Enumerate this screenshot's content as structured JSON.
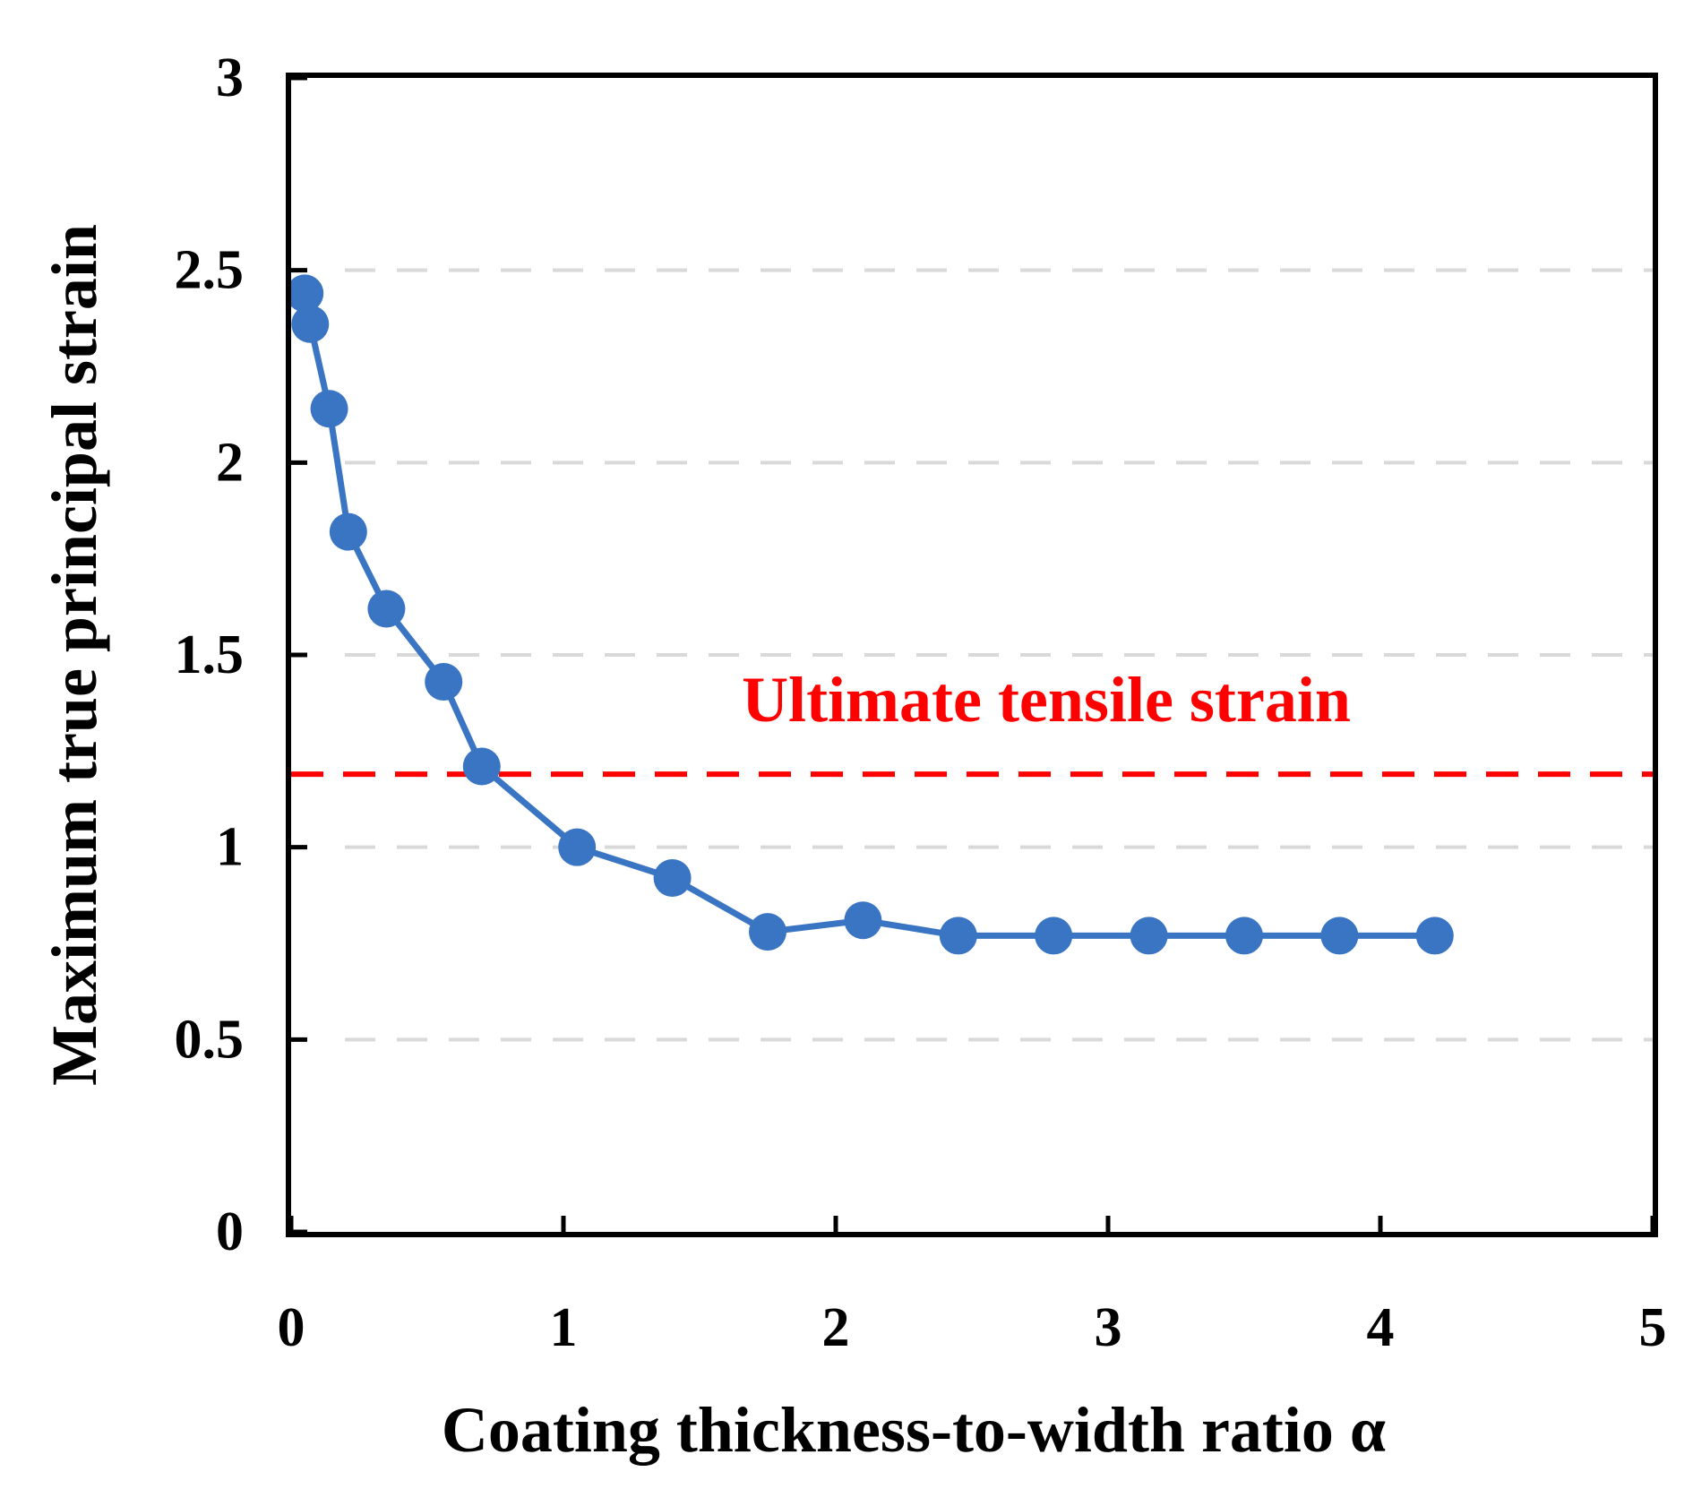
{
  "chart_data": {
    "type": "line",
    "title": "",
    "xlabel": "Coating thickness-to-width ratio α",
    "ylabel": "Maximum true principal strain",
    "xlim": [
      0,
      5
    ],
    "ylim": [
      0,
      3
    ],
    "xticks": [
      0,
      1,
      2,
      3,
      4,
      5
    ],
    "yticks": [
      0,
      0.5,
      1,
      1.5,
      2,
      2.5,
      3
    ],
    "xtick_labels": [
      "0",
      "1",
      "2",
      "3",
      "4",
      "5"
    ],
    "ytick_labels": [
      "0",
      "0.5",
      "1",
      "1.5",
      "2",
      "2.5",
      "3"
    ],
    "grid": "horizontal dashed",
    "series": [
      {
        "name": "Maximum true principal strain",
        "color": "#3a75c4",
        "marker": "circle",
        "x": [
          0.05,
          0.07,
          0.14,
          0.21,
          0.35,
          0.56,
          0.7,
          1.05,
          1.4,
          1.75,
          2.1,
          2.45,
          2.8,
          3.15,
          3.5,
          3.85,
          4.2
        ],
        "y": [
          2.44,
          2.36,
          2.14,
          1.82,
          1.62,
          1.43,
          1.21,
          1.0,
          0.92,
          0.78,
          0.81,
          0.77,
          0.77,
          0.77,
          0.77,
          0.77,
          0.77
        ]
      }
    ],
    "reference_line": {
      "label": "Ultimate tensile strain",
      "y": 1.19,
      "color": "#ff0000",
      "style": "dashed"
    }
  }
}
